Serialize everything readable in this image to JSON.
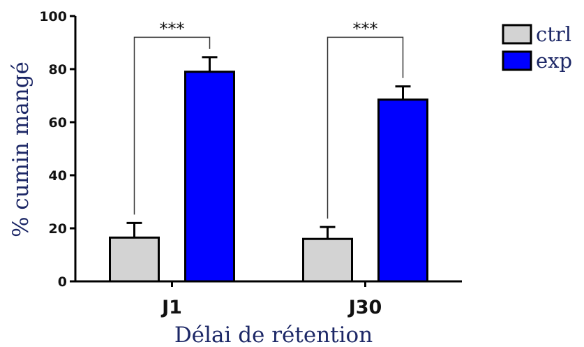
{
  "chart_data": {
    "type": "bar",
    "title": "",
    "xlabel": "Délai de rétention",
    "ylabel": "% cumin mangé",
    "ylim": [
      0,
      100
    ],
    "yticks": [
      0,
      20,
      40,
      60,
      80,
      100
    ],
    "categories": [
      "J1",
      "J30"
    ],
    "series": [
      {
        "name": "ctrl",
        "values": [
          16.5,
          16
        ],
        "errors": [
          5.5,
          4.5
        ],
        "color": "#d3d3d3"
      },
      {
        "name": "exp",
        "values": [
          79,
          68.5
        ],
        "errors": [
          5.5,
          5
        ],
        "color": "#0000ff"
      }
    ],
    "significance": [
      {
        "category": "J1",
        "label": "***"
      },
      {
        "category": "J30",
        "label": "***"
      }
    ],
    "legend_position": "top-right",
    "grid": false
  }
}
